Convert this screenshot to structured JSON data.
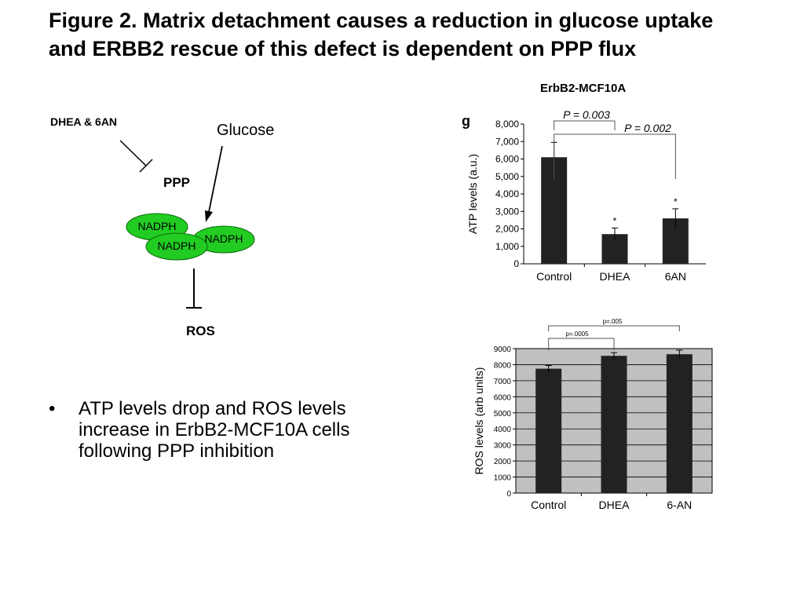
{
  "slide": {
    "title": "Figure 2. Matrix detachment causes a reduction in glucose uptake and ERBB2 rescue of this defect is dependent on PPP flux",
    "panel_header": "ErbB2-MCF10A",
    "bullet_symbol": "•",
    "bullet_text": "ATP levels drop and ROS levels increase in ErbB2-MCF10A cells following PPP inhibition"
  },
  "diagram": {
    "inhibitor": "DHEA & 6AN",
    "glucose": "Glucose",
    "ppp": "PPP",
    "nadph": [
      "NADPH",
      "NADPH",
      "NADPH"
    ],
    "ros": "ROS",
    "nadph_color": "#22cc22"
  },
  "chart_data": [
    {
      "type": "bar",
      "panel_letter": "g",
      "categories": [
        "Control",
        "DHEA",
        "6AN"
      ],
      "values": [
        6100,
        1700,
        2600
      ],
      "errors": [
        850,
        350,
        550
      ],
      "ylabel": "ATP levels (a.u.)",
      "ylim": [
        0,
        8000
      ],
      "yticks": [
        "0",
        "1,000",
        "2,000",
        "3,000",
        "4,000",
        "5,000",
        "6,000",
        "7,000",
        "8,000"
      ],
      "markers": [
        "",
        "*",
        "*"
      ],
      "comparisons": [
        "P = 0.003",
        "P = 0.002"
      ],
      "grid": false,
      "bar_color": "#222222"
    },
    {
      "type": "bar",
      "categories": [
        "Control",
        "DHEA",
        "6-AN"
      ],
      "values": [
        7750,
        8550,
        8650
      ],
      "errors": [
        200,
        200,
        250
      ],
      "ylabel": "ROS levels (arb units)",
      "ylim": [
        0,
        9000
      ],
      "yticks": [
        "0",
        "1000",
        "2000",
        "3000",
        "4000",
        "5000",
        "6000",
        "7000",
        "8000",
        "9000"
      ],
      "comparisons": [
        "p=.0005",
        "p=.005"
      ],
      "grid": true,
      "plot_background": "#c0c0c0",
      "bar_color": "#222222"
    }
  ]
}
